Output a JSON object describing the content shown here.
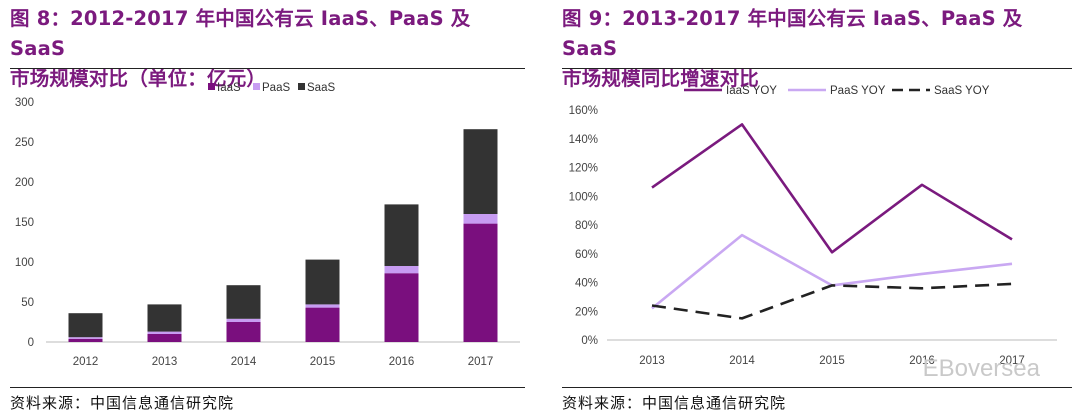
{
  "left": {
    "title_line1": "图 8：2012-2017 年中国公有云 IaaS、PaaS 及 SaaS",
    "title_line2": "市场规模对比（单位：亿元）",
    "source": "资料来源：中国信息通信研究院"
  },
  "right": {
    "title_line1": "图 9：2013-2017 年中国公有云 IaaS、PaaS 及 SaaS",
    "title_line2": "市场规模同比增速对比",
    "source": "资料来源：中国信息通信研究院"
  },
  "watermark": "EBoversea",
  "chart_data": [
    {
      "type": "bar",
      "stacked": true,
      "categories": [
        "2012",
        "2013",
        "2014",
        "2015",
        "2016",
        "2017"
      ],
      "series": [
        {
          "name": "IaaS",
          "color": "#7a0f7e",
          "values": [
            4,
            10,
            25,
            43,
            86,
            148
          ]
        },
        {
          "name": "PaaS",
          "color": "#c79cf2",
          "values": [
            2,
            3,
            4,
            4,
            9,
            12
          ]
        },
        {
          "name": "SaaS",
          "color": "#333333",
          "values": [
            30,
            34,
            42,
            56,
            77,
            106
          ]
        }
      ],
      "ylim": [
        0,
        300
      ],
      "yticks": [
        "0",
        "50",
        "100",
        "150",
        "200",
        "250",
        "300"
      ],
      "grid": false,
      "legend": "top-right"
    },
    {
      "type": "line",
      "categories": [
        "2013",
        "2014",
        "2015",
        "2016",
        "2017"
      ],
      "series": [
        {
          "name": "IaaS YOY",
          "color": "#7a1a7e",
          "dash": "solid",
          "values": [
            106,
            150,
            61,
            108,
            70
          ]
        },
        {
          "name": "PaaS YOY",
          "color": "#c9a8f2",
          "dash": "solid",
          "values": [
            22,
            73,
            38,
            46,
            53
          ]
        },
        {
          "name": "SaaS YOY",
          "color": "#222222",
          "dash": "dashed",
          "values": [
            24,
            15,
            38,
            36,
            39
          ]
        }
      ],
      "ylim": [
        0,
        160
      ],
      "yticks": [
        "0%",
        "20%",
        "40%",
        "60%",
        "80%",
        "100%",
        "120%",
        "140%",
        "160%"
      ],
      "grid": false,
      "legend": "top"
    }
  ]
}
